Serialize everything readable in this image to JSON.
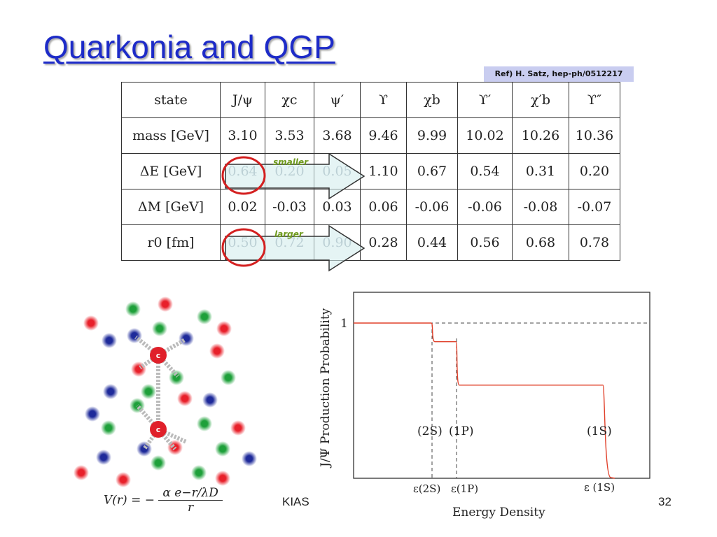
{
  "title": "Quarkonia and QGP",
  "reference": "Ref) H. Satz, hep-ph/0512217",
  "table": {
    "header": [
      "state",
      "J/ψ",
      "χc",
      "ψ′",
      "ϒ",
      "χb",
      "ϒ′",
      "χ′b",
      "ϒ″"
    ],
    "rows": [
      {
        "label": "mass [GeV]",
        "values": [
          "3.10",
          "3.53",
          "3.68",
          "9.46",
          "9.99",
          "10.02",
          "10.26",
          "10.36"
        ]
      },
      {
        "label": "ΔE [GeV]",
        "values": [
          "0.64",
          "0.20",
          "0.05",
          "1.10",
          "0.67",
          "0.54",
          "0.31",
          "0.20"
        ]
      },
      {
        "label": "ΔM [GeV]",
        "values": [
          "0.02",
          "-0.03",
          "0.03",
          "0.06",
          "-0.06",
          "-0.06",
          "-0.08",
          "-0.07"
        ]
      },
      {
        "label": "r0 [fm]",
        "values": [
          "0.50",
          "0.72",
          "0.90",
          "0.28",
          "0.44",
          "0.56",
          "0.68",
          "0.78"
        ]
      }
    ]
  },
  "annotations": {
    "smaller": "smaller",
    "larger": "larger"
  },
  "diagram": {
    "charm_label": "c"
  },
  "formula": {
    "lhs": "V(r) = −",
    "numerator": "α e−r/λD",
    "denominator": "r"
  },
  "chart_data": {
    "type": "line",
    "title": "",
    "xlabel": "Energy Density",
    "ylabel": "J/Ψ Production Probability",
    "ytick": "1",
    "thresholds": [
      "ε(2S)",
      "ε(1P)",
      "ε (1S)"
    ],
    "state_labels": [
      "(2S)",
      "(1P)",
      "(1S)"
    ],
    "step_levels": [
      1.0,
      0.88,
      0.6,
      0.0
    ]
  },
  "footer": {
    "venue": "KIAS",
    "page": "32"
  },
  "colors": {
    "title": "#1d2bc8",
    "ref_box": "#c9cdf0",
    "curve": "#e0402a",
    "circle": "#d42020",
    "arrow_fill": "#d4ecec",
    "annotation": "#6e9a1e"
  }
}
